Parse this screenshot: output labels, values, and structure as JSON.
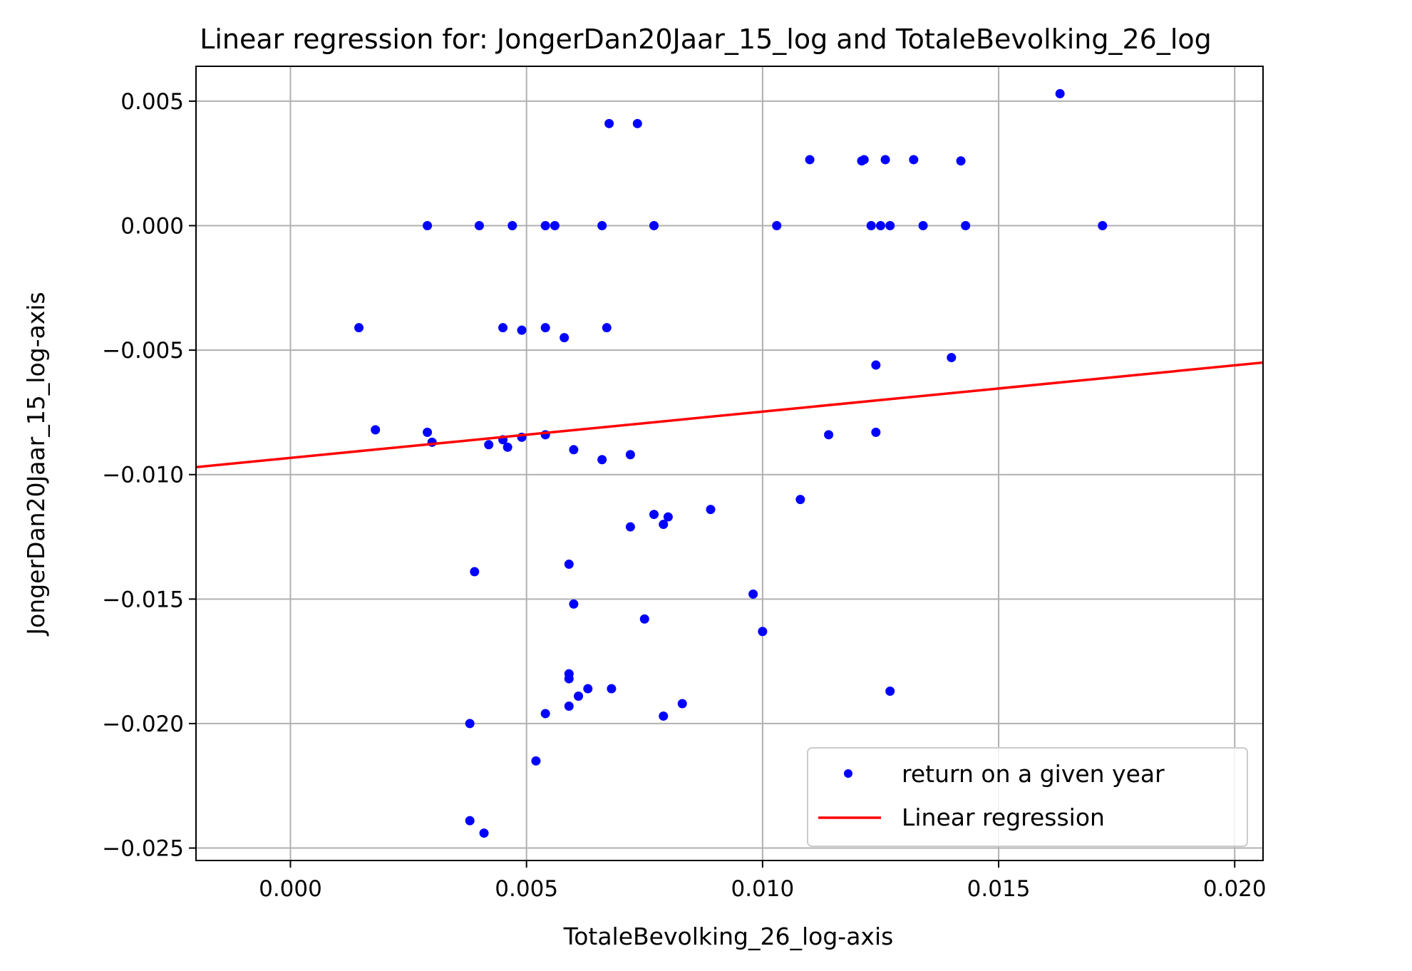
{
  "chart_data": {
    "type": "scatter",
    "title": "Linear regression for: JongerDan20Jaar_15_log and TotaleBevolking_26_log",
    "xlabel": "TotaleBevolking_26_log-axis",
    "ylabel": "JongerDan20Jaar_15_log-axis",
    "xlim": [
      -0.002,
      0.0206
    ],
    "ylim": [
      -0.0255,
      0.0064
    ],
    "grid": true,
    "legend_position": "lower-right",
    "x_ticks": [
      0.0,
      0.005,
      0.01,
      0.015,
      0.02
    ],
    "x_tick_labels": [
      "0.000",
      "0.005",
      "0.010",
      "0.015",
      "0.020"
    ],
    "y_ticks": [
      0.005,
      0.0,
      -0.005,
      -0.01,
      -0.015,
      -0.02,
      -0.025
    ],
    "y_tick_labels": [
      "0.005",
      "0.000",
      "−0.005",
      "−0.010",
      "−0.015",
      "−0.020",
      "−0.025"
    ],
    "series": [
      {
        "name": "return on a given year",
        "kind": "scatter",
        "color": "#0000ff",
        "points": [
          [
            0.0163,
            0.0053
          ],
          [
            0.00675,
            0.0041
          ],
          [
            0.00735,
            0.0041
          ],
          [
            0.011,
            0.00265
          ],
          [
            0.0121,
            0.0026
          ],
          [
            0.01215,
            0.00265
          ],
          [
            0.0126,
            0.00265
          ],
          [
            0.0132,
            0.00265
          ],
          [
            0.0142,
            0.0026
          ],
          [
            0.0029,
            0.0
          ],
          [
            0.004,
            0.0
          ],
          [
            0.0047,
            0.0
          ],
          [
            0.0054,
            0.0
          ],
          [
            0.0056,
            0.0
          ],
          [
            0.0066,
            0.0
          ],
          [
            0.0077,
            0.0
          ],
          [
            0.0103,
            0.0
          ],
          [
            0.0123,
            0.0
          ],
          [
            0.0125,
            0.0
          ],
          [
            0.0127,
            0.0
          ],
          [
            0.0134,
            0.0
          ],
          [
            0.0143,
            0.0
          ],
          [
            0.0172,
            0.0
          ],
          [
            0.00145,
            -0.0041
          ],
          [
            0.0045,
            -0.0041
          ],
          [
            0.0049,
            -0.0042
          ],
          [
            0.0054,
            -0.0041
          ],
          [
            0.0058,
            -0.0045
          ],
          [
            0.0067,
            -0.0041
          ],
          [
            0.0124,
            -0.0056
          ],
          [
            0.014,
            -0.0053
          ],
          [
            0.0018,
            -0.0082
          ],
          [
            0.0029,
            -0.0083
          ],
          [
            0.003,
            -0.0087
          ],
          [
            0.0042,
            -0.0088
          ],
          [
            0.0045,
            -0.0086
          ],
          [
            0.0046,
            -0.0089
          ],
          [
            0.0049,
            -0.0085
          ],
          [
            0.0054,
            -0.0084
          ],
          [
            0.006,
            -0.009
          ],
          [
            0.0066,
            -0.0094
          ],
          [
            0.0072,
            -0.0092
          ],
          [
            0.0114,
            -0.0084
          ],
          [
            0.0124,
            -0.0083
          ],
          [
            0.0108,
            -0.011
          ],
          [
            0.0072,
            -0.0121
          ],
          [
            0.0077,
            -0.0116
          ],
          [
            0.0079,
            -0.012
          ],
          [
            0.008,
            -0.0117
          ],
          [
            0.0089,
            -0.0114
          ],
          [
            0.0039,
            -0.0139
          ],
          [
            0.0059,
            -0.0136
          ],
          [
            0.006,
            -0.0152
          ],
          [
            0.0075,
            -0.0158
          ],
          [
            0.0098,
            -0.0148
          ],
          [
            0.01,
            -0.0163
          ],
          [
            0.0059,
            -0.018
          ],
          [
            0.0059,
            -0.0182
          ],
          [
            0.0059,
            -0.0193
          ],
          [
            0.0061,
            -0.0189
          ],
          [
            0.0063,
            -0.0186
          ],
          [
            0.0068,
            -0.0186
          ],
          [
            0.0054,
            -0.0196
          ],
          [
            0.0079,
            -0.0197
          ],
          [
            0.0083,
            -0.0192
          ],
          [
            0.0127,
            -0.0187
          ],
          [
            0.0038,
            -0.02
          ],
          [
            0.0052,
            -0.0215
          ],
          [
            0.0038,
            -0.0239
          ],
          [
            0.0041,
            -0.0244
          ]
        ]
      },
      {
        "name": "Linear regression",
        "kind": "line",
        "color": "#ff0000",
        "x": [
          -0.002,
          0.0206
        ],
        "y": [
          -0.0097,
          -0.0055
        ]
      }
    ]
  }
}
